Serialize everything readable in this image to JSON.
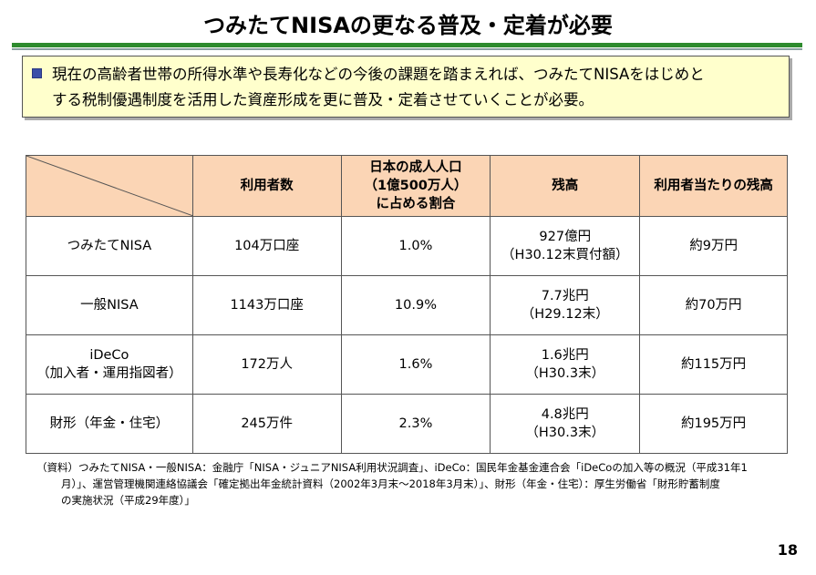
{
  "title": "つみたてNISAの更なる普及・定着が必要",
  "summary": {
    "text": "現在の高齢者世帯の所得水準や長寿化などの今後の課題を踏まえれば、つみたてNISAをはじめと\nする税制優遇制度を活用した資産形成を更に普及・定着させていくことが必要。"
  },
  "table": {
    "headers": [
      "",
      "利用者数",
      "日本の成人人口\n（1億500万人）\nに占める割合",
      "残高",
      "利用者当たりの残高"
    ],
    "rows": [
      {
        "name": "つみたてNISA",
        "users": "104万口座",
        "share": "1.0%",
        "balance": "927億円\n（H30.12末買付額）",
        "per_user": "約9万円"
      },
      {
        "name": "一般NISA",
        "users": "1143万口座",
        "share": "10.9%",
        "balance": "7.7兆円\n（H29.12末）",
        "per_user": "約70万円"
      },
      {
        "name": "iDeCo\n（加入者・運用指図者）",
        "users": "172万人",
        "share": "1.6%",
        "balance": "1.6兆円\n（H30.3末）",
        "per_user": "約115万円"
      },
      {
        "name": "財形（年金・住宅）",
        "users": "245万件",
        "share": "2.3%",
        "balance": "4.8兆円\n（H30.3末）",
        "per_user": "約195万円"
      }
    ]
  },
  "source": {
    "line1": "（資料）つみたてNISA・一般NISA：金融庁「NISA・ジュニアNISA利用状況調査」、iDeCo：国民年金基金連合会「iDeCoの加入等の概況（平成31年1",
    "line2": "月）」、運営管理機関連絡協議会「確定拠出年金統計資料（2002年3月末～2018年3月末）」、財形（年金・住宅）：厚生労働省「財形貯蓄制度",
    "line3": "の実施状況（平成29年度）」"
  },
  "page_number": "18",
  "colors": {
    "header_fill": "#fbd5b5",
    "summary_fill": "#ffffcc",
    "rule_green": "#2e8b2e",
    "bullet": "#3b4fa8"
  }
}
